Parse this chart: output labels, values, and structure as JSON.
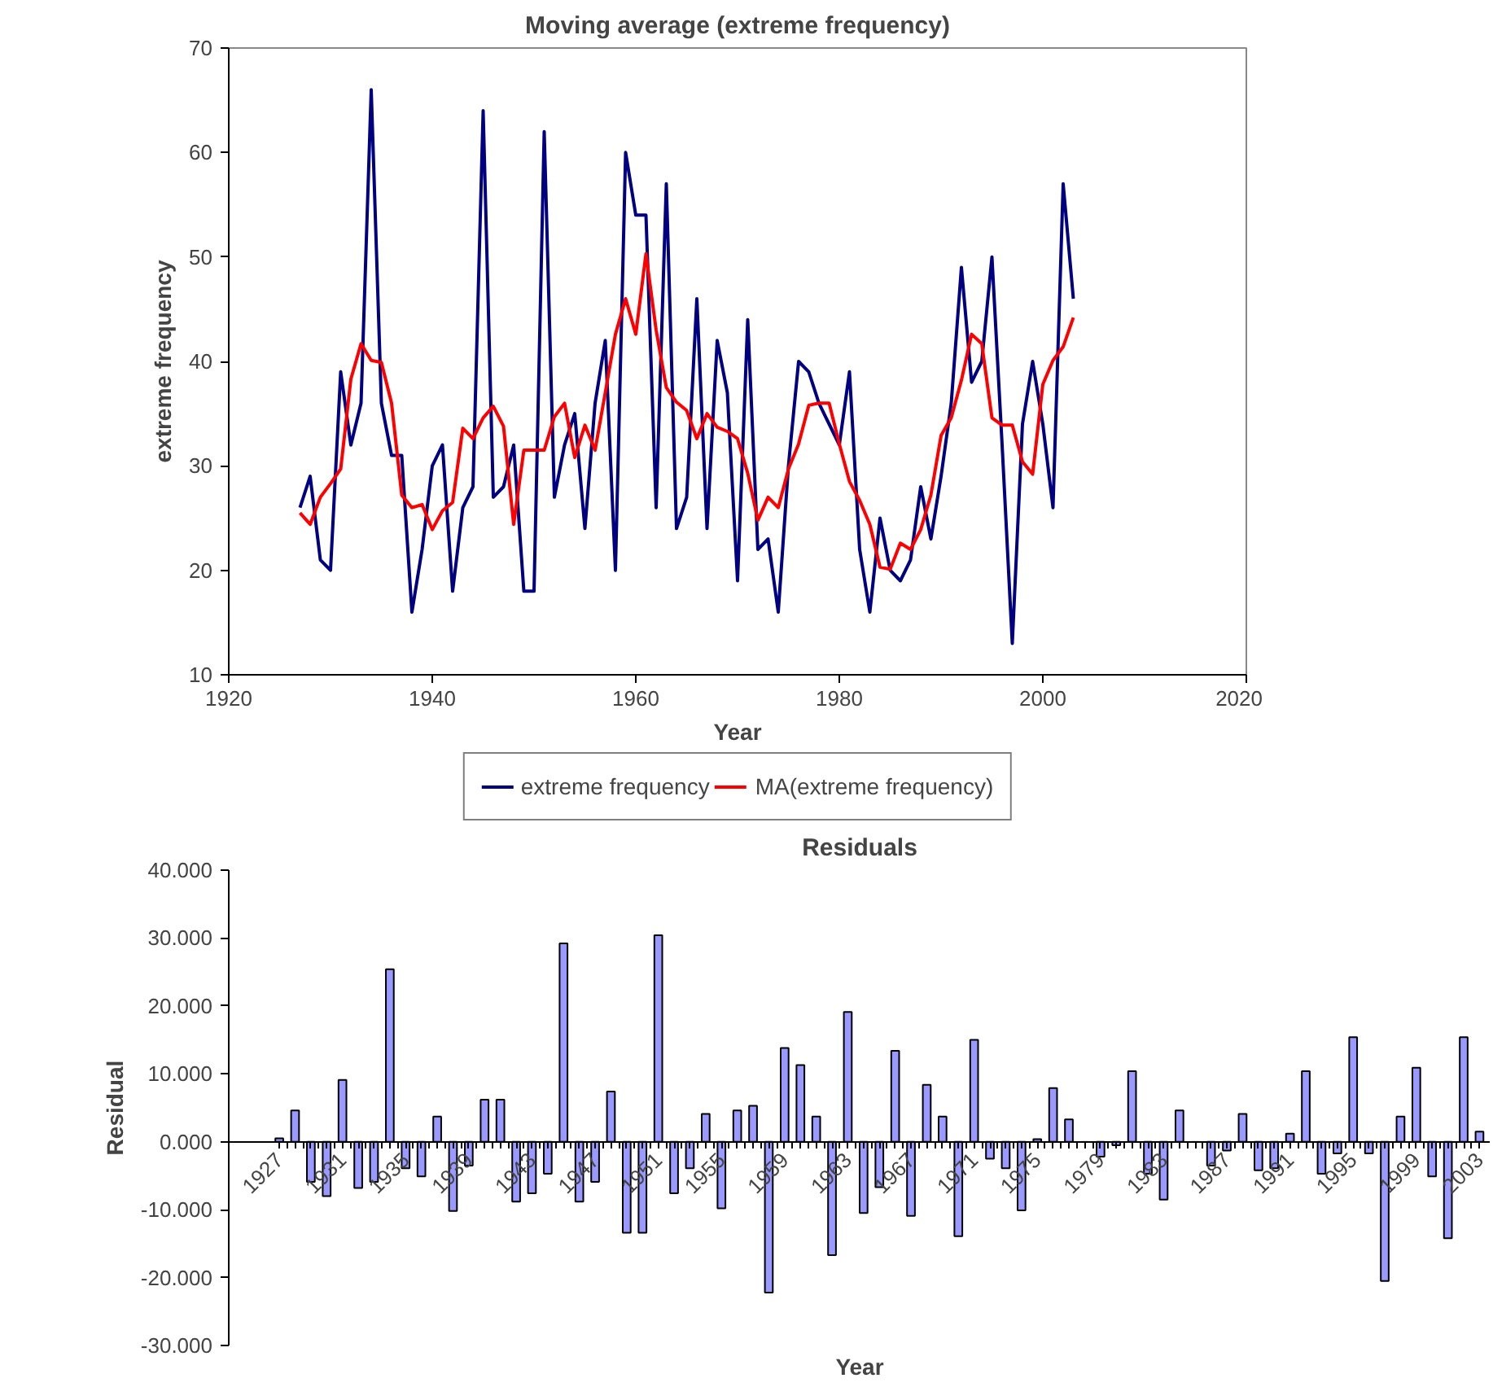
{
  "chart_data": [
    {
      "type": "line",
      "title": "Moving average (extreme frequency)",
      "xlabel": "Year",
      "ylabel": "extreme frequency",
      "x": [
        1927,
        1928,
        1929,
        1930,
        1931,
        1932,
        1933,
        1934,
        1935,
        1936,
        1937,
        1938,
        1939,
        1940,
        1941,
        1942,
        1943,
        1944,
        1945,
        1946,
        1947,
        1948,
        1949,
        1950,
        1951,
        1952,
        1953,
        1954,
        1955,
        1956,
        1957,
        1958,
        1959,
        1960,
        1961,
        1962,
        1963,
        1964,
        1965,
        1966,
        1967,
        1968,
        1969,
        1970,
        1971,
        1972,
        1973,
        1974,
        1975,
        1976,
        1977,
        1978,
        1979,
        1980,
        1981,
        1982,
        1983,
        1984,
        1985,
        1986,
        1987,
        1988,
        1989,
        1990,
        1991,
        1992,
        1993,
        1994,
        1995,
        1996,
        1997,
        1998,
        1999,
        2000,
        2001,
        2002,
        2003
      ],
      "series": [
        {
          "name": "extreme frequency",
          "color": "#000080",
          "values": [
            26,
            29,
            21,
            20,
            39,
            32,
            36,
            66,
            36,
            31,
            31,
            16,
            22,
            30,
            32,
            18,
            26,
            28,
            64,
            27,
            28,
            32,
            18,
            18,
            62,
            27,
            32,
            35,
            24,
            36,
            42,
            20,
            60,
            54,
            54,
            26,
            57,
            24,
            27,
            46,
            24,
            42,
            37,
            19,
            44,
            22,
            23,
            16,
            30,
            40,
            39,
            36,
            34,
            32,
            39,
            22,
            16,
            25,
            20,
            19,
            21,
            28,
            23,
            29,
            36,
            49,
            38,
            40,
            50,
            32,
            13,
            34,
            40,
            34,
            26,
            57,
            46
          ]
        },
        {
          "name": "MA(extreme frequency)",
          "color": "#ff0000",
          "values": [
            25.5,
            24.4,
            27,
            28.3,
            29.7,
            38.3,
            41.7,
            40.1,
            39.9,
            36,
            27.2,
            26,
            26.3,
            23.9,
            25.7,
            26.5,
            33.6,
            32.6,
            34.6,
            35.7,
            33.8,
            24.4,
            31.5,
            31.5,
            31.5,
            34.7,
            36,
            30.8,
            33.9,
            31.5,
            37,
            42.6,
            46,
            42.6,
            50.3,
            43,
            37.5,
            36.1,
            35.3,
            32.6,
            35,
            33.7,
            33.3,
            32.6,
            29.3,
            24.8,
            27,
            26,
            29.7,
            32.1,
            35.8,
            36,
            36,
            32.1,
            28.5,
            26.7,
            24.4,
            20.3,
            20.1,
            22.6,
            22,
            23.9,
            27.2,
            32.9,
            34.6,
            38.2,
            42.6,
            41.7,
            34.6,
            33.9,
            33.9,
            30.4,
            29.2,
            37.8,
            40.1,
            41.4,
            44.2
          ]
        }
      ],
      "xlim": [
        1920,
        2020
      ],
      "xticks": [
        1920,
        1940,
        1960,
        1980,
        2000,
        2020
      ],
      "ylim": [
        10,
        70
      ],
      "yticks": [
        10,
        20,
        30,
        40,
        50,
        60,
        70
      ],
      "legend": "bottom"
    },
    {
      "type": "bar",
      "title": "Residuals",
      "xlabel": "Year",
      "ylabel": "Residual",
      "color": "#9999ff",
      "categories": [
        "1927",
        null,
        null,
        null,
        "1931",
        null,
        null,
        null,
        "1935",
        null,
        null,
        null,
        "1939",
        null,
        null,
        null,
        "1943",
        null,
        null,
        null,
        "1947",
        null,
        null,
        null,
        "1951",
        null,
        null,
        null,
        "1955",
        null,
        null,
        null,
        "1959",
        null,
        null,
        null,
        "1963",
        null,
        null,
        null,
        "1967",
        null,
        null,
        null,
        "1971",
        null,
        null,
        null,
        "1975",
        null,
        null,
        null,
        "1979",
        null,
        null,
        null,
        "1983",
        null,
        null,
        null,
        "1987",
        null,
        null,
        null,
        "1991",
        null,
        null,
        null,
        "1995",
        null,
        null,
        null,
        "1999",
        null,
        null,
        null,
        "2003"
      ],
      "values": [
        0.5,
        4.6,
        -5.9,
        -8,
        9.1,
        -6.8,
        -5.9,
        25.4,
        -3.9,
        -5.1,
        3.7,
        -10.2,
        -3.5,
        6.2,
        6.2,
        -8.8,
        -7.6,
        -4.7,
        29.2,
        -8.8,
        -5.9,
        7.4,
        -13.4,
        -13.4,
        30.4,
        -7.6,
        -3.9,
        4.1,
        -9.8,
        4.6,
        5.3,
        -22.2,
        13.8,
        11.3,
        3.7,
        -16.7,
        19.1,
        -10.5,
        -6.7,
        13.4,
        -10.9,
        8.4,
        3.7,
        -13.9,
        15,
        -2.5,
        -3.9,
        -10.1,
        0.4,
        7.9,
        3.3,
        0,
        -2.2,
        -0.5,
        10.4,
        -4.7,
        -8.5,
        4.6,
        0,
        -3.5,
        -1.3,
        4.1,
        -4.2,
        -3.9,
        1.2,
        10.4,
        -4.7,
        -1.7,
        15.4,
        -1.7,
        -20.5,
        3.7,
        10.9,
        -5.1,
        -14.2,
        15.4,
        1.5
      ],
      "ylim": [
        -30,
        40
      ],
      "yticks": [
        {
          "value": -30,
          "label": "-30.000"
        },
        {
          "value": -20,
          "label": "-20.000"
        },
        {
          "value": -10,
          "label": "-10.000"
        },
        {
          "value": 0,
          "label": "0.000"
        },
        {
          "value": 10,
          "label": "10.000"
        },
        {
          "value": 20,
          "label": "20.000"
        },
        {
          "value": 30,
          "label": "30.000"
        },
        {
          "value": 40,
          "label": "40.000"
        }
      ]
    }
  ]
}
